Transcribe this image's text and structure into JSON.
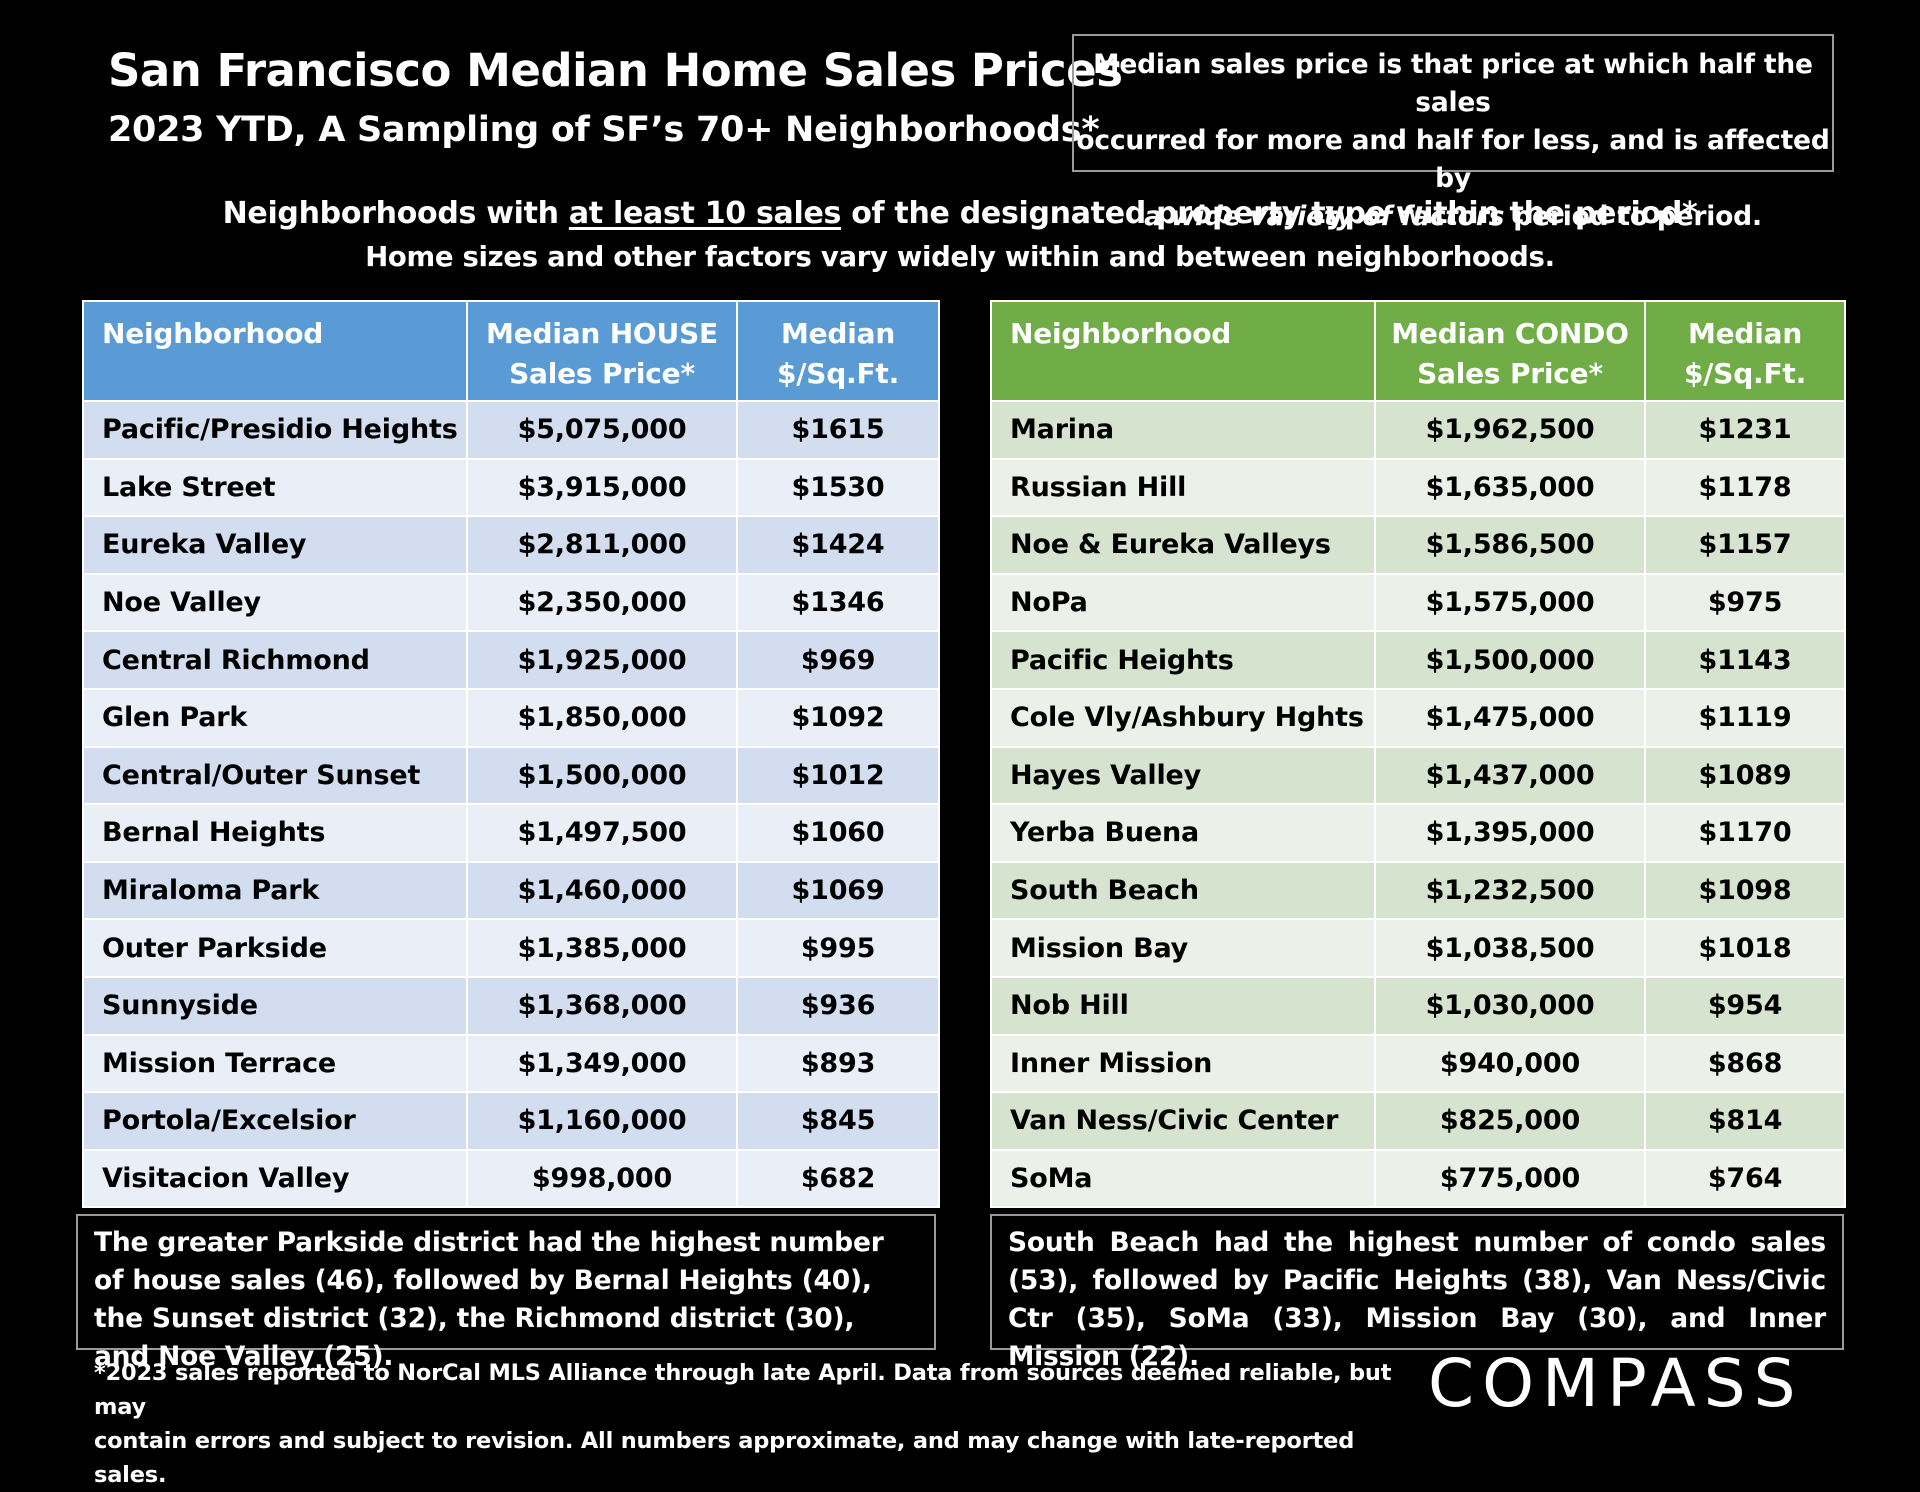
{
  "header": {
    "title": "San Francisco Median Home Sales Prices",
    "subtitle": "2023 YTD, A Sampling of SF’s 70+ Neighborhoods*",
    "note": {
      "line1": "Median sales price is that price at which half the sales",
      "line2": "occurred for more and half for less, and is affected by",
      "line3_italic": "a wide variety of factors",
      "line3_rest": " period to period."
    },
    "criteria": {
      "pre": "Neighborhoods with ",
      "underlined": "at least 10 sales",
      "post": " of the designated property type within the period*",
      "line2": "Home sizes and other factors vary widely within and between neighborhoods."
    }
  },
  "chart_data": [
    {
      "type": "table",
      "columns": [
        "Neighborhood",
        "Median HOUSE Sales Price*",
        "Median $/Sq.Ft."
      ],
      "header_color": "#5b9bd5",
      "rows": [
        [
          "Pacific/Presidio Heights",
          "$5,075,000",
          "$1615"
        ],
        [
          "Lake Street",
          "$3,915,000",
          "$1530"
        ],
        [
          "Eureka Valley",
          "$2,811,000",
          "$1424"
        ],
        [
          "Noe Valley",
          "$2,350,000",
          "$1346"
        ],
        [
          "Central Richmond",
          "$1,925,000",
          "$969"
        ],
        [
          "Glen Park",
          "$1,850,000",
          "$1092"
        ],
        [
          "Central/Outer Sunset",
          "$1,500,000",
          "$1012"
        ],
        [
          "Bernal Heights",
          "$1,497,500",
          "$1060"
        ],
        [
          "Miraloma Park",
          "$1,460,000",
          "$1069"
        ],
        [
          "Outer Parkside",
          "$1,385,000",
          "$995"
        ],
        [
          "Sunnyside",
          "$1,368,000",
          "$936"
        ],
        [
          "Mission Terrace",
          "$1,349,000",
          "$893"
        ],
        [
          "Portola/Excelsior",
          "$1,160,000",
          "$845"
        ],
        [
          "Visitacion Valley",
          "$998,000",
          "$682"
        ]
      ]
    },
    {
      "type": "table",
      "columns": [
        "Neighborhood",
        "Median CONDO Sales Price*",
        "Median $/Sq.Ft."
      ],
      "header_color": "#70ad47",
      "rows": [
        [
          "Marina",
          "$1,962,500",
          "$1231"
        ],
        [
          "Russian Hill",
          "$1,635,000",
          "$1178"
        ],
        [
          "Noe & Eureka Valleys",
          "$1,586,500",
          "$1157"
        ],
        [
          "NoPa",
          "$1,575,000",
          "$975"
        ],
        [
          "Pacific Heights",
          "$1,500,000",
          "$1143"
        ],
        [
          "Cole Vly/Ashbury Hghts",
          "$1,475,000",
          "$1119"
        ],
        [
          "Hayes Valley",
          "$1,437,000",
          "$1089"
        ],
        [
          "Yerba Buena",
          "$1,395,000",
          "$1170"
        ],
        [
          "South Beach",
          "$1,232,500",
          "$1098"
        ],
        [
          "Mission Bay",
          "$1,038,500",
          "$1018"
        ],
        [
          "Nob Hill",
          "$1,030,000",
          "$954"
        ],
        [
          "Inner Mission",
          "$940,000",
          "$868"
        ],
        [
          "Van Ness/Civic Center",
          "$825,000",
          "$814"
        ],
        [
          "SoMa",
          "$775,000",
          "$764"
        ]
      ]
    }
  ],
  "house_table": {
    "col1_header": "Neighborhood",
    "col2_header_l1": "Median HOUSE",
    "col2_header_l2": "Sales Price*",
    "col3_header_l1": "Median",
    "col3_header_l2": "$/Sq.Ft."
  },
  "condo_table": {
    "col1_header": "Neighborhood",
    "col2_header_l1": "Median CONDO",
    "col2_header_l2": "Sales Price*",
    "col3_header_l1": "Median",
    "col3_header_l2": "$/Sq.Ft."
  },
  "house_summary": "The greater Parkside district had the highest number of house sales (46), followed by Bernal Heights (40), the Sunset district (32), the Richmond district (30), and Noe Valley (25).",
  "condo_summary": "South Beach had the highest number of condo sales (53), followed by Pacific Heights (38), Van Ness/Civic Ctr (35), SoMa (33), Mission Bay (30), and Inner Mission (22).",
  "footnote": {
    "line1": "*2023 sales reported to NorCal MLS Alliance through late April. Data from sources deemed reliable, but may",
    "line2": "contain errors and subject to revision. All numbers approximate, and may change with late-reported sales."
  },
  "logo": {
    "text": "COMPASS"
  }
}
